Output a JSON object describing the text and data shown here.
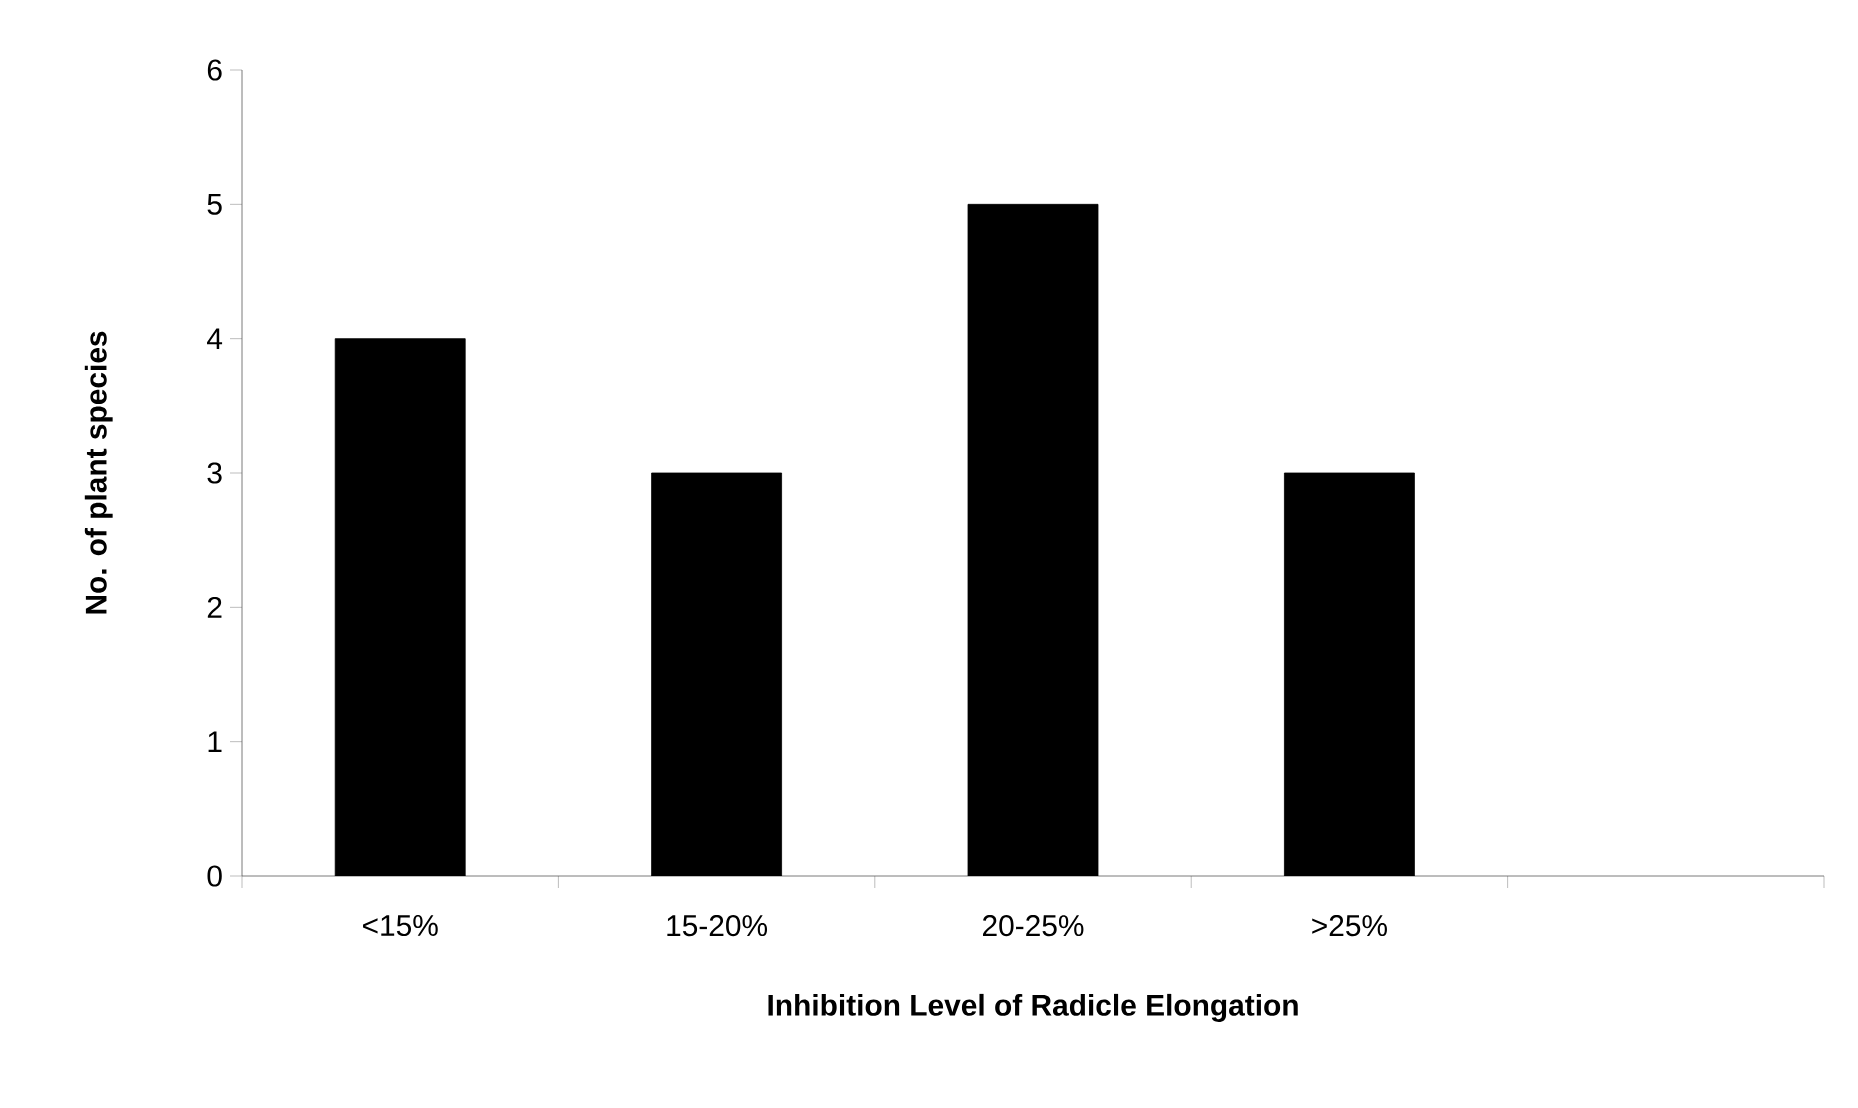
{
  "chart_data": {
    "type": "bar",
    "xlabel": "Inhibition Level of Radicle Elongation",
    "ylabel": "No. of plant species",
    "categories": [
      "<15%",
      "15-20%",
      "20-25%",
      ">25%",
      null
    ],
    "values": [
      4,
      3,
      5,
      3,
      null
    ],
    "color": "#000000",
    "ylim": [
      0,
      6
    ],
    "yticks": [
      0,
      1,
      2,
      3,
      4,
      5,
      6
    ]
  }
}
